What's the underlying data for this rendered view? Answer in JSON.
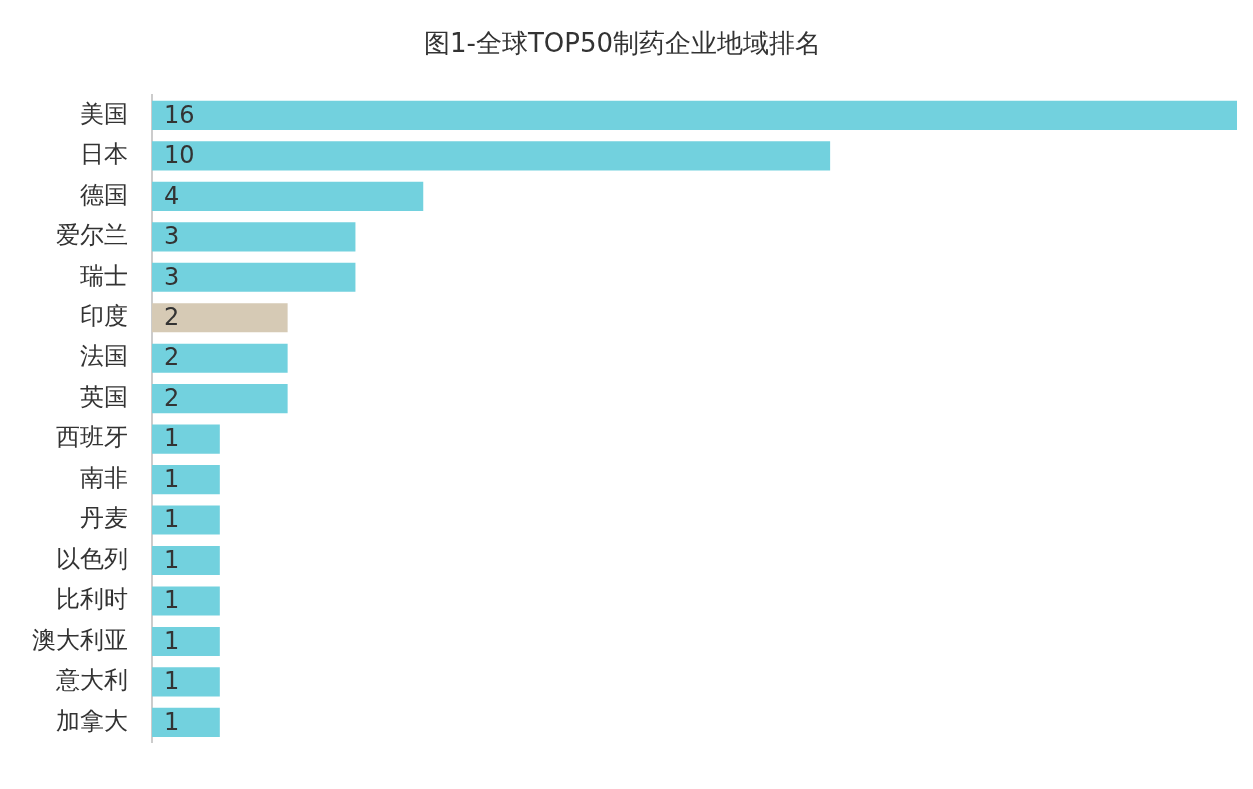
{
  "chart_data": {
    "type": "bar",
    "orientation": "horizontal",
    "title": "图1-全球TOP50制药企业地域排名",
    "categories": [
      "美国",
      "日本",
      "德国",
      "爱尔兰",
      "瑞士",
      "印度",
      "法国",
      "英国",
      "西班牙",
      "南非",
      "丹麦",
      "以色列",
      "比利时",
      "澳大利亚",
      "意大利",
      "加拿大"
    ],
    "values": [
      16,
      10,
      4,
      3,
      3,
      2,
      2,
      2,
      1,
      1,
      1,
      1,
      1,
      1,
      1,
      1
    ],
    "colors": [
      "#72d1de",
      "#72d1de",
      "#72d1de",
      "#72d1de",
      "#72d1de",
      "#d6cab5",
      "#72d1de",
      "#72d1de",
      "#72d1de",
      "#72d1de",
      "#72d1de",
      "#72d1de",
      "#72d1de",
      "#72d1de",
      "#72d1de",
      "#72d1de"
    ],
    "data_labels": true,
    "legend": false
  }
}
